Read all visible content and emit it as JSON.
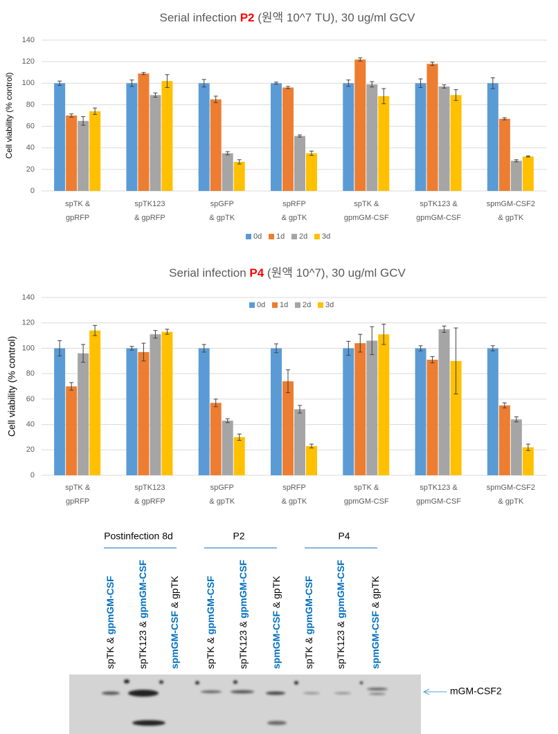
{
  "chart_data": [
    {
      "type": "bar",
      "title": [
        {
          "text": "Serial infection "
        },
        {
          "text": "P2",
          "emphasis": true
        },
        {
          "text": " (원액 10^7 TU), 30 ug/ml GCV"
        }
      ],
      "emphasis_color": "#ff0000",
      "y_label": "Cell viability (% control)",
      "categories": [
        [
          "spTK &",
          "gpRFP"
        ],
        [
          "spTK123",
          "& gpRFP"
        ],
        [
          "spGFP",
          "& gpTK"
        ],
        [
          "spRFP",
          "& gpTK"
        ],
        [
          "spTK &",
          "gpmGM-CSF"
        ],
        [
          "spTK123 &",
          "gpmGM-CSF"
        ],
        [
          "spmGM-CSF2",
          "& gpTK"
        ]
      ],
      "series": [
        {
          "name": "0d",
          "color": "#5b9bd5",
          "values": [
            100,
            100,
            100,
            100,
            100,
            100,
            100
          ],
          "errors": [
            2,
            3,
            3.5,
            1,
            3,
            4,
            5
          ]
        },
        {
          "name": "1d",
          "color": "#ed7d31",
          "values": [
            70,
            109,
            85,
            96,
            122,
            118,
            67
          ],
          "errors": [
            1.5,
            1,
            3,
            1,
            1.5,
            1.5,
            1
          ]
        },
        {
          "name": "2d",
          "color": "#a5a5a5",
          "values": [
            65,
            89,
            35,
            51,
            99,
            97,
            28
          ],
          "errors": [
            4,
            2,
            1.5,
            1,
            2.5,
            1.5,
            1
          ]
        },
        {
          "name": "3d",
          "color": "#ffc000",
          "values": [
            74,
            102,
            27,
            35,
            88,
            89,
            32
          ],
          "errors": [
            3,
            6,
            2,
            2,
            7,
            5,
            0.5
          ]
        }
      ],
      "ylim": [
        0,
        140
      ],
      "yticks": [
        0,
        20,
        40,
        60,
        80,
        100,
        120,
        140
      ],
      "grid": true,
      "legend": "bottom"
    },
    {
      "type": "bar",
      "title": [
        {
          "text": "Serial infection "
        },
        {
          "text": "P4",
          "emphasis": true
        },
        {
          "text": " (원액 10^7), 30 ug/ml GCV"
        }
      ],
      "emphasis_color": "#ff0000",
      "y_label": "Cell viability (% control)",
      "categories": [
        [
          "spTK &",
          "gpRFP"
        ],
        [
          "spTK123",
          "& gpRFP"
        ],
        [
          "spGFP",
          "& gpTK"
        ],
        [
          "spRFP",
          "& gpTK"
        ],
        [
          "spTK &",
          "gpmGM-CSF"
        ],
        [
          "spTK123 &",
          "gpmGM-CSF"
        ],
        [
          "spmGM-CSF2",
          "& gpTK"
        ]
      ],
      "series": [
        {
          "name": "0d",
          "color": "#5b9bd5",
          "values": [
            100,
            100,
            100,
            100,
            100,
            100,
            100
          ],
          "errors": [
            6,
            1.5,
            3,
            3.5,
            5.5,
            2,
            2
          ]
        },
        {
          "name": "1d",
          "color": "#ed7d31",
          "values": [
            70,
            97,
            57,
            74,
            104,
            91,
            55
          ],
          "errors": [
            3,
            7,
            3,
            9,
            7,
            2.5,
            2
          ]
        },
        {
          "name": "2d",
          "color": "#a5a5a5",
          "values": [
            96,
            111,
            43,
            52,
            106,
            115,
            44
          ],
          "errors": [
            7,
            3,
            1.5,
            3,
            11,
            2.5,
            2
          ]
        },
        {
          "name": "3d",
          "color": "#ffc000",
          "values": [
            114,
            113,
            30,
            23,
            111,
            90,
            22
          ],
          "errors": [
            4,
            2,
            2.5,
            1.5,
            8,
            26,
            2.5
          ]
        }
      ],
      "ylim": [
        0,
        140
      ],
      "yticks": [
        0,
        20,
        40,
        60,
        80,
        100,
        120,
        140
      ],
      "grid": true,
      "legend": "top"
    }
  ],
  "blot": {
    "groups": [
      "Postinfection 8d",
      "P2",
      "P4"
    ],
    "emphasis_color": "#0070c0",
    "lanes": [
      [
        {
          "text": "spTK & "
        },
        {
          "text": "gpmGM-CSF",
          "emphasis": true
        }
      ],
      [
        {
          "text": "spTK123 & "
        },
        {
          "text": "gpmGM-CSF",
          "emphasis": true
        }
      ],
      [
        {
          "text": "spmGM-CSF",
          "emphasis": true
        },
        {
          "text": " & gpTK"
        }
      ],
      [
        {
          "text": "spTK & "
        },
        {
          "text": "gpmGM-CSF",
          "emphasis": true
        }
      ],
      [
        {
          "text": "spTK123 & "
        },
        {
          "text": "gpmGM-CSF",
          "emphasis": true
        }
      ],
      [
        {
          "text": "spmGM-CSF",
          "emphasis": true
        },
        {
          "text": " & gpTK"
        }
      ],
      [
        {
          "text": "spTK & "
        },
        {
          "text": "gpmGM-CSF",
          "emphasis": true
        }
      ],
      [
        {
          "text": "spTK123 & "
        },
        {
          "text": "gpmGM-CSF",
          "emphasis": true
        }
      ],
      [
        {
          "text": "spmGM-CSF",
          "emphasis": true
        },
        {
          "text": " & gpTK"
        }
      ]
    ],
    "band_label": "mGM-CSF2"
  }
}
